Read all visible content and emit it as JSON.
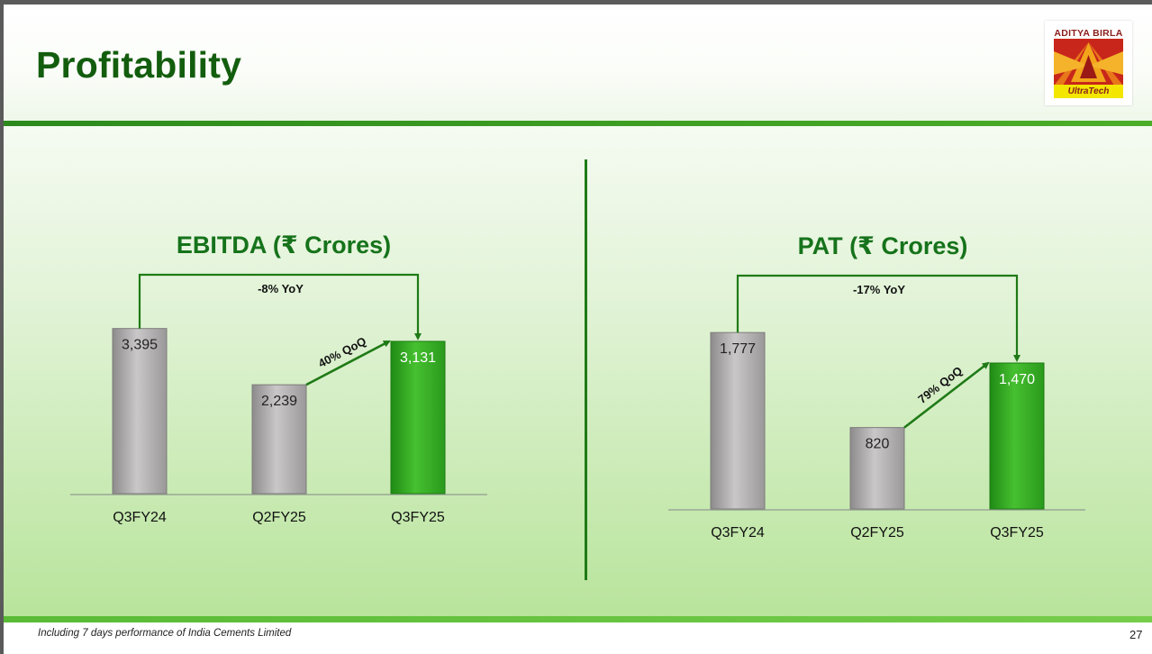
{
  "slide": {
    "title": "Profitability",
    "footnote": "Including 7 days performance of India Cements Limited",
    "page_number": "27"
  },
  "logo": {
    "brand": "ADITYA BIRLA",
    "sub": "UltraTech"
  },
  "colors": {
    "title_green": "#135d0e",
    "chart_title_green": "#16731b",
    "bar_grey": "#a8a6a6",
    "bar_green": "#2f9e1f",
    "arrow_green": "#1f7a16"
  },
  "chart_data": [
    {
      "type": "bar",
      "title": "EBITDA (₹ Crores)",
      "categories": [
        "Q3FY24",
        "Q2FY25",
        "Q3FY25"
      ],
      "values": [
        3395,
        2239,
        3131
      ],
      "value_labels": [
        "3,395",
        "2,239",
        "3,131"
      ],
      "highlight_index": 2,
      "ylim": [
        0,
        4500
      ],
      "annotations": {
        "yoy": "-8% YoY",
        "qoq": "40% QoQ"
      }
    },
    {
      "type": "bar",
      "title": "PAT (₹ Crores)",
      "categories": [
        "Q3FY24",
        "Q2FY25",
        "Q3FY25"
      ],
      "values": [
        1777,
        820,
        1470
      ],
      "value_labels": [
        "1,777",
        "820",
        "1,470"
      ],
      "highlight_index": 2,
      "ylim": [
        0,
        2350
      ],
      "annotations": {
        "yoy": "-17% YoY",
        "qoq": "79% QoQ"
      }
    }
  ]
}
